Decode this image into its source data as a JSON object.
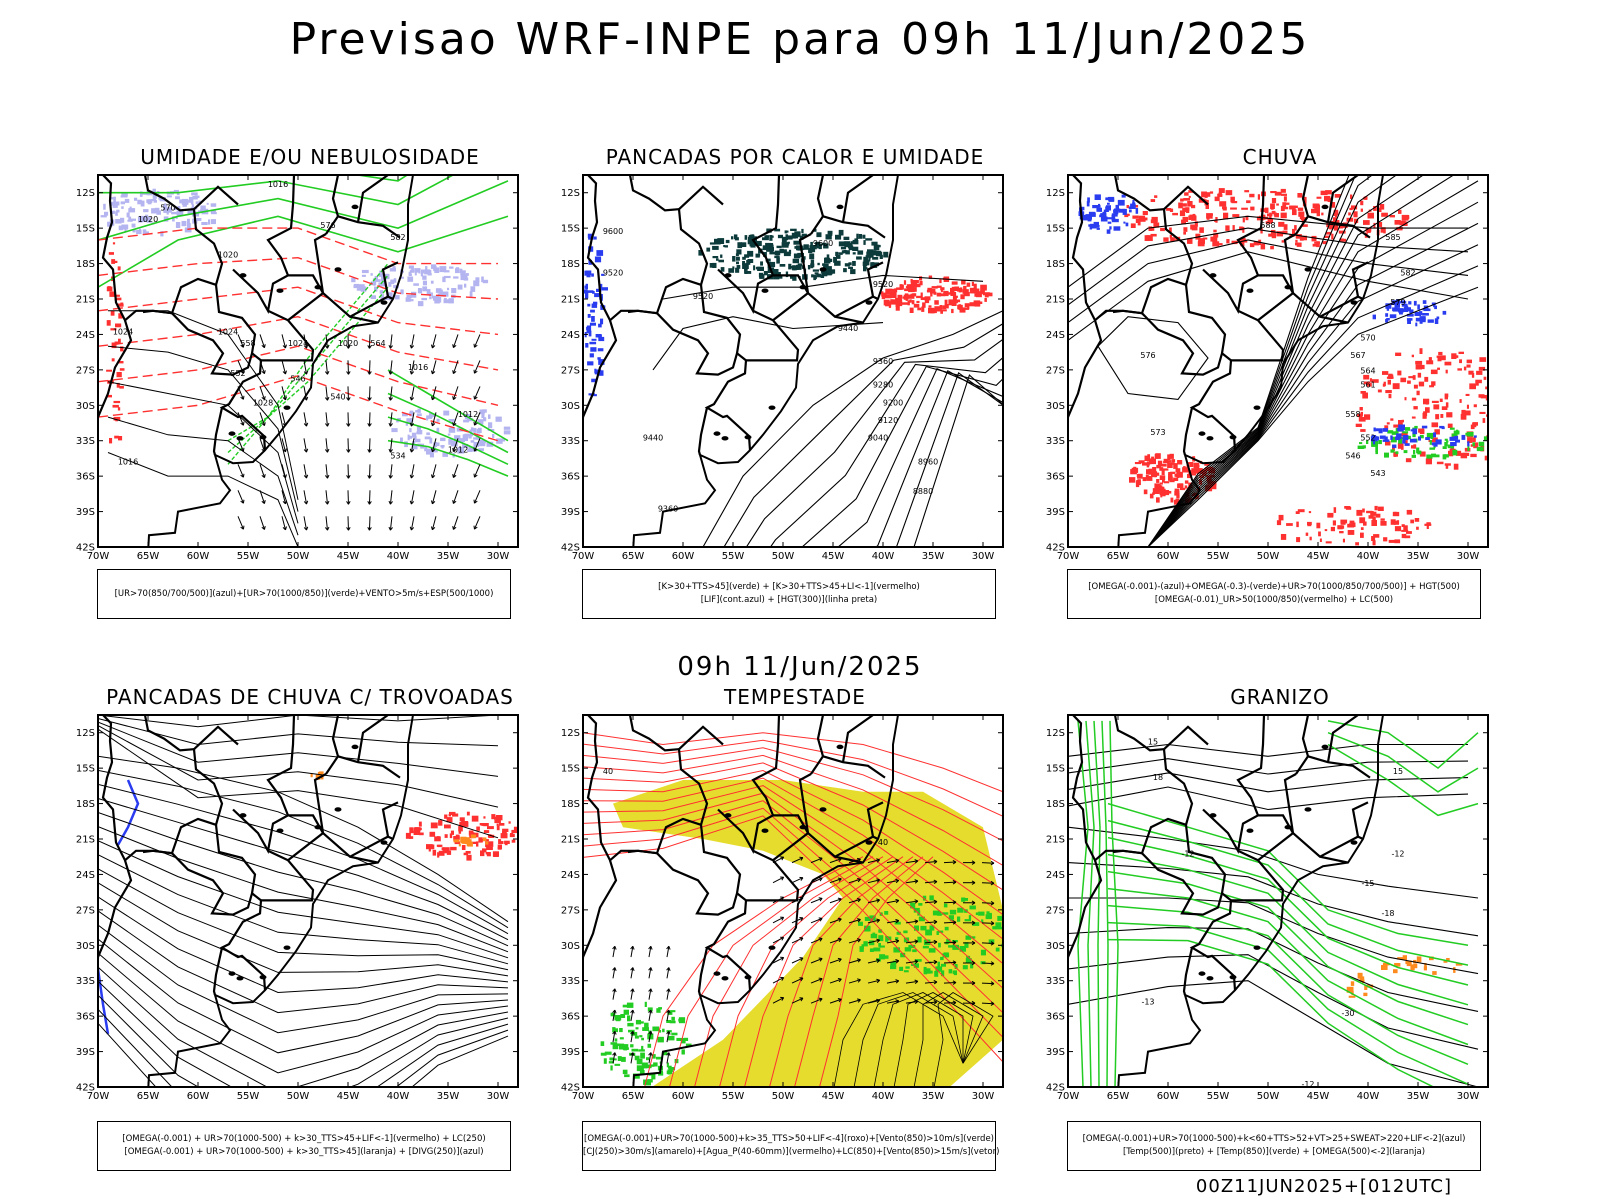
{
  "title": "Previsao WRF-INPE  para 09h 11/Jun/2025",
  "middle_title": "09h 11/Jun/2025",
  "footer": "00Z11JUN2025+[012UTC]",
  "axes": {
    "lat_labels": [
      "12S",
      "15S",
      "18S",
      "21S",
      "24S",
      "27S",
      "30S",
      "33S",
      "36S",
      "39S",
      "42S"
    ],
    "lon_labels": [
      "70W",
      "65W",
      "60W",
      "55W",
      "50W",
      "45W",
      "40W",
      "35W",
      "30W"
    ]
  },
  "colors": {
    "blue": "#2a3cf0",
    "green": "#22cc22",
    "red": "#ff3030",
    "lavender": "#b4b4f0",
    "darkteal": "#0d3b3b",
    "yellow": "#e6dc2e",
    "orange": "#ff8a1e"
  },
  "panels": [
    {
      "id": "umidade",
      "title": "UMIDADE E/OU NEBULOSIDADE",
      "legend": [
        "[UR>70(850/700/500)](azul)+[UR>70(1000/850)](verde)+VENTO>5m/s+ESP(500/1000)"
      ],
      "contour_labels": [
        "1016",
        "1020",
        "1020",
        "1024",
        "1024",
        "1024",
        "1020",
        "1028",
        "1012",
        "1012",
        "1016",
        "1016",
        "570",
        "576",
        "582",
        "558",
        "552",
        "546",
        "540",
        "534",
        "564"
      ]
    },
    {
      "id": "pancadas-calor",
      "title": "PANCADAS POR CALOR E UMIDADE",
      "legend": [
        "[K>30+TTS>45](verde)  +  [K>30+TTS>45+LI<-1](vermelho)",
        "[LIF](cont.azul)  +  [HGT(300)](linha preta)"
      ],
      "contour_labels": [
        "9600",
        "9520",
        "9520",
        "9600",
        "9520",
        "9440",
        "9440",
        "9360",
        "9280",
        "9200",
        "9120",
        "9040",
        "8960",
        "8880",
        "9360"
      ]
    },
    {
      "id": "chuva",
      "title": "CHUVA",
      "legend": [
        "[OMEGA(-0.001)-(azul)+OMEGA(-0.3)-(verde)+UR>70(1000/850/700/500)]  +  HGT(500)",
        "[OMEGA(-0.01)_UR>50(1000/850)(vermelho)  +  LC(500)"
      ],
      "contour_labels": [
        "588",
        "585",
        "582",
        "579",
        "576",
        "573",
        "570",
        "567",
        "564",
        "561",
        "558",
        "552",
        "546",
        "543"
      ]
    },
    {
      "id": "pancadas-trovoadas",
      "title": "PANCADAS DE CHUVA C/ TROVOADAS",
      "legend": [
        "[OMEGA(-0.001)  +  UR>70(1000-500)  +  k>30_TTS>45+LIF<-1](vermelho)  +  LC(250)",
        "[OMEGA(-0.001)  +  UR>70(1000-500)  +  k>30_TTS>45](laranja)  +  [DIVG(250)](azul)"
      ],
      "contour_labels": []
    },
    {
      "id": "tempestade",
      "title": "TEMPESTADE",
      "legend": [
        "[OMEGA(-0.001)+UR>70(1000-500)+k>35_TTS>50+LIF<-4](roxo)+[Vento(850)>10m/s](verde)",
        "[CJ(250)>30m/s](amarelo)+[Agua_P(40-60mm)](vermelho)+LC(850)+[Vento(850)>15m/s](vetor)"
      ],
      "contour_labels": [
        "40",
        "40"
      ]
    },
    {
      "id": "granizo",
      "title": "GRANIZO",
      "legend": [
        "[OMEGA(-0.001)+UR>70(1000-500)+k<60+TTS>52+VT>25+SWEAT>220+LIF<-2](azul)",
        "[Temp(500)](preto)  +  [Temp(850)](verde)  +  [OMEGA(500)<-2](laranja)"
      ],
      "contour_labels": [
        "-12",
        "-12",
        "-15",
        "-18",
        "-13",
        "-30",
        "-12",
        "15",
        "18",
        "15"
      ]
    }
  ]
}
